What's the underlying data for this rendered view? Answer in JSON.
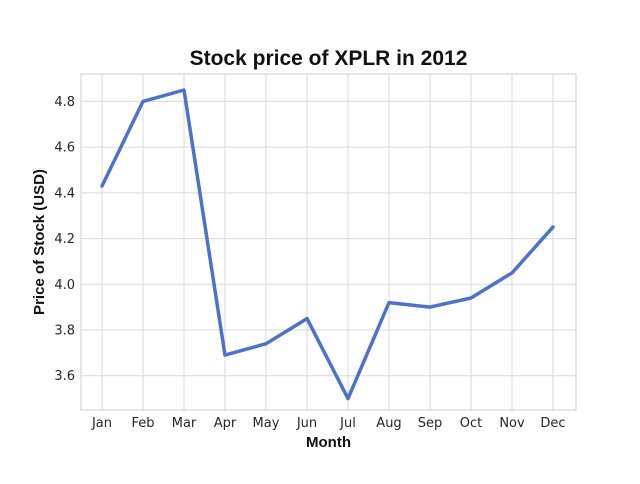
{
  "chart_data": {
    "type": "line",
    "title": "Stock price of XPLR in 2012",
    "xlabel": "Month",
    "ylabel": "Price of Stock (USD)",
    "categories": [
      "Jan",
      "Feb",
      "Mar",
      "Apr",
      "May",
      "Jun",
      "Jul",
      "Aug",
      "Sep",
      "Oct",
      "Nov",
      "Dec"
    ],
    "values": [
      4.43,
      4.8,
      4.85,
      3.69,
      3.74,
      3.85,
      3.5,
      3.92,
      3.9,
      3.94,
      4.05,
      4.25
    ],
    "ylim": [
      3.45,
      4.92
    ],
    "yticks": [
      "3.6",
      "3.8",
      "4.0",
      "4.2",
      "4.4",
      "4.6",
      "4.8"
    ],
    "grid": true,
    "line_color": "#4c72c9"
  }
}
